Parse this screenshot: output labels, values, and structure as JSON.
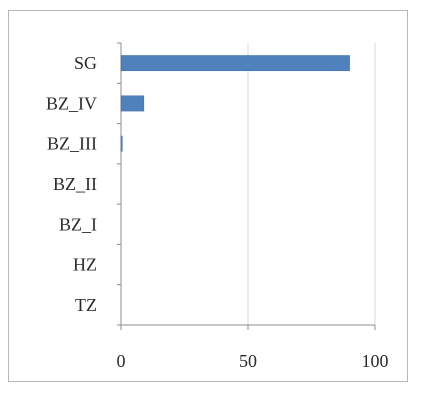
{
  "chart_data": {
    "type": "bar",
    "orientation": "horizontal",
    "categories": [
      "SG",
      "BZ_IV",
      "BZ_III",
      "BZ_II",
      "BZ_I",
      "HZ",
      "TZ"
    ],
    "values": [
      90,
      9,
      0.5,
      0,
      0,
      0,
      0
    ],
    "xlim": [
      0,
      100
    ],
    "xticks": [
      0,
      50,
      100
    ],
    "grid": true,
    "legend": "none",
    "bar_color": "#4f81bd"
  }
}
